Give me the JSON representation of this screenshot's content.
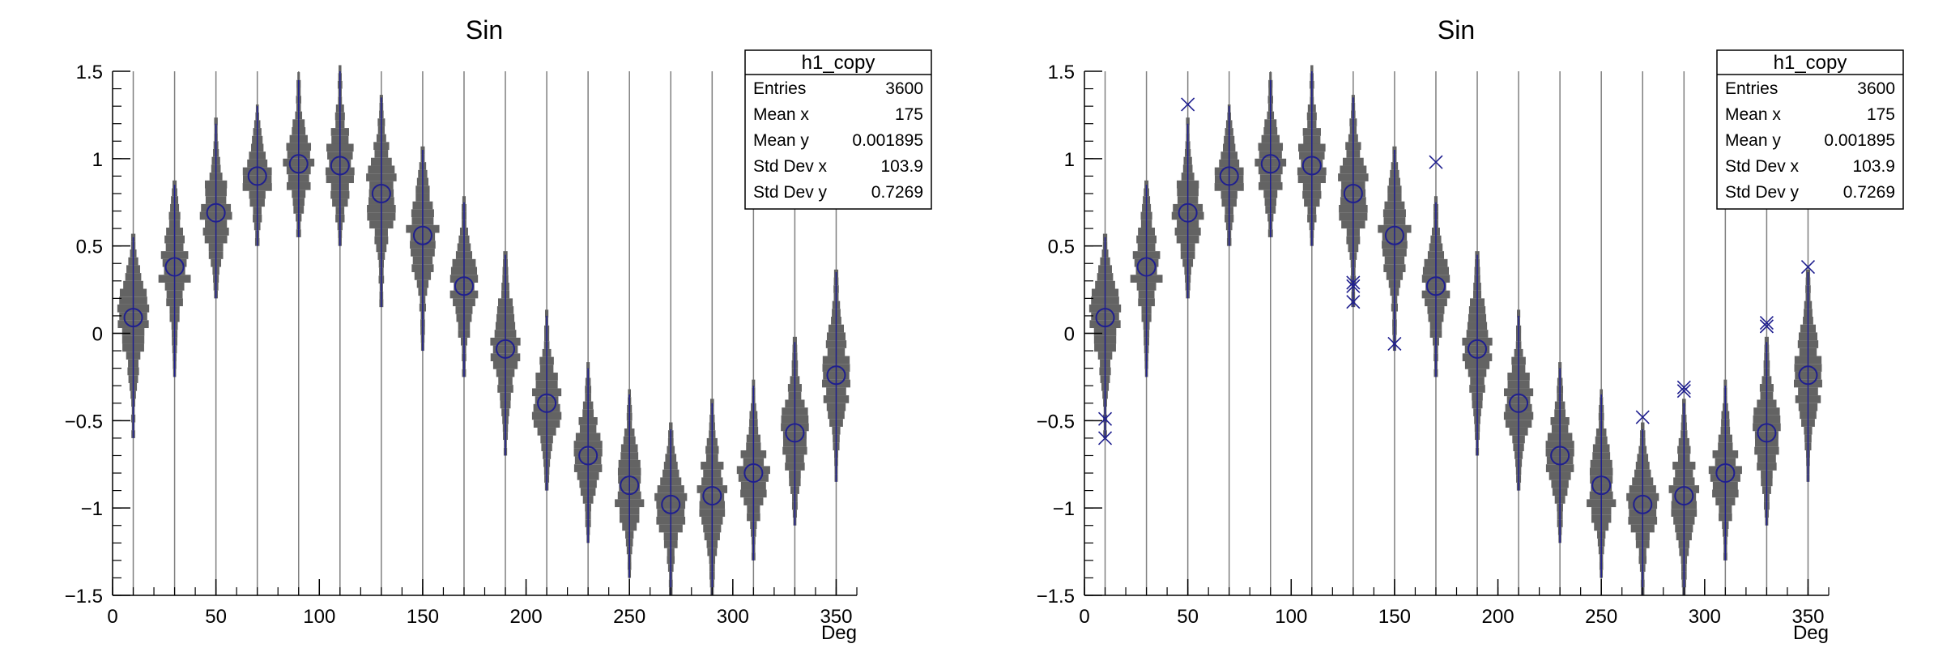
{
  "colors": {
    "violin": "#636363",
    "marker": "#1f1f8f",
    "axis": "#000000",
    "gridline": "#7f7f7f",
    "background": "#ffffff"
  },
  "chart_data": [
    {
      "type": "violin",
      "panel": "left",
      "title": "Sin",
      "xlabel": "Deg",
      "ylabel": "",
      "xlim": [
        0,
        360
      ],
      "ylim": [
        -1.5,
        1.5
      ],
      "x_ticks": [
        "0",
        "50",
        "100",
        "150",
        "200",
        "250",
        "300",
        "350"
      ],
      "y_ticks": [
        "1.5",
        "1",
        "0.5",
        "0",
        "−0.5",
        "−1",
        "−1.5"
      ],
      "grid": "vertical lines at each category",
      "x": [
        10,
        30,
        50,
        70,
        90,
        110,
        130,
        150,
        170,
        190,
        210,
        230,
        250,
        270,
        290,
        310,
        330,
        350
      ],
      "mean": [
        0.09,
        0.38,
        0.69,
        0.9,
        0.97,
        0.96,
        0.8,
        0.56,
        0.27,
        -0.09,
        -0.4,
        -0.7,
        -0.87,
        -0.98,
        -0.93,
        -0.8,
        -0.57,
        -0.24
      ],
      "ymin": [
        -0.6,
        -0.25,
        0.2,
        0.5,
        0.55,
        0.5,
        0.15,
        -0.1,
        -0.25,
        -0.7,
        -0.9,
        -1.2,
        -1.4,
        -1.5,
        -1.5,
        -1.3,
        -1.1,
        -0.85
      ],
      "ymax": [
        0.55,
        0.85,
        1.2,
        1.3,
        1.45,
        1.5,
        1.35,
        1.05,
        0.75,
        0.45,
        0.1,
        -0.2,
        -0.35,
        -0.55,
        -0.4,
        -0.3,
        -0.05,
        0.35
      ],
      "outliers": [],
      "stats_box": {
        "title": "h1_copy",
        "rows": [
          {
            "label": "Entries",
            "value": "3600"
          },
          {
            "label": "Mean x",
            "value": "175"
          },
          {
            "label": "Mean y",
            "value": "0.001895"
          },
          {
            "label": "Std Dev x",
            "value": "103.9"
          },
          {
            "label": "Std Dev y",
            "value": "0.7269"
          }
        ]
      }
    },
    {
      "type": "violin",
      "panel": "right",
      "title": "Sin",
      "xlabel": "Deg",
      "ylabel": "",
      "xlim": [
        0,
        360
      ],
      "ylim": [
        -1.5,
        1.5
      ],
      "x_ticks": [
        "0",
        "50",
        "100",
        "150",
        "200",
        "250",
        "300",
        "350"
      ],
      "y_ticks": [
        "1.5",
        "1",
        "0.5",
        "0",
        "−0.5",
        "−1",
        "−1.5"
      ],
      "grid": "vertical lines at each category",
      "x": [
        10,
        30,
        50,
        70,
        90,
        110,
        130,
        150,
        170,
        190,
        210,
        230,
        250,
        270,
        290,
        310,
        330,
        350
      ],
      "mean": [
        0.09,
        0.38,
        0.69,
        0.9,
        0.97,
        0.96,
        0.8,
        0.56,
        0.27,
        -0.09,
        -0.4,
        -0.7,
        -0.87,
        -0.98,
        -0.93,
        -0.8,
        -0.57,
        -0.24
      ],
      "ymin": [
        -0.6,
        -0.25,
        0.2,
        0.5,
        0.55,
        0.5,
        0.15,
        -0.1,
        -0.25,
        -0.7,
        -0.9,
        -1.2,
        -1.4,
        -1.5,
        -1.5,
        -1.3,
        -1.1,
        -0.85
      ],
      "ymax": [
        0.55,
        0.85,
        1.2,
        1.3,
        1.45,
        1.5,
        1.35,
        1.05,
        0.75,
        0.45,
        0.1,
        -0.2,
        -0.35,
        -0.55,
        -0.4,
        -0.3,
        -0.05,
        0.35
      ],
      "outliers": [
        {
          "x": 10,
          "y": -0.49
        },
        {
          "x": 10,
          "y": -0.6
        },
        {
          "x": 50,
          "y": 1.31
        },
        {
          "x": 130,
          "y": 0.29
        },
        {
          "x": 130,
          "y": 0.27
        },
        {
          "x": 130,
          "y": 0.18
        },
        {
          "x": 150,
          "y": -0.06
        },
        {
          "x": 170,
          "y": 0.98
        },
        {
          "x": 270,
          "y": -0.48
        },
        {
          "x": 290,
          "y": -0.31
        },
        {
          "x": 290,
          "y": -0.33
        },
        {
          "x": 330,
          "y": 0.06
        },
        {
          "x": 330,
          "y": 0.04
        },
        {
          "x": 350,
          "y": 0.38
        }
      ],
      "stats_box": {
        "title": "h1_copy",
        "rows": [
          {
            "label": "Entries",
            "value": "3600"
          },
          {
            "label": "Mean x",
            "value": "175"
          },
          {
            "label": "Mean y",
            "value": "0.001895"
          },
          {
            "label": "Std Dev x",
            "value": "103.9"
          },
          {
            "label": "Std Dev y",
            "value": "0.7269"
          }
        ]
      }
    }
  ]
}
